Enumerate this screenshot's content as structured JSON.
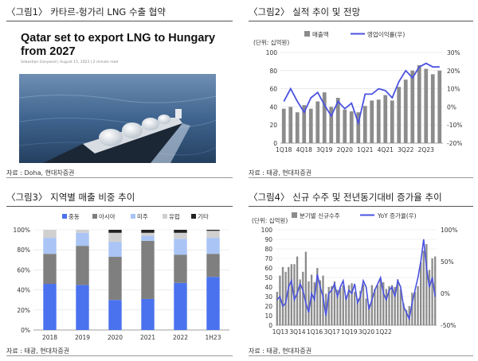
{
  "panels": {
    "p1": {
      "title": "〈그림1〉 카타르-헝가리 LNG 수출 협약",
      "source": "자료 : Doha, 현대차증권"
    },
    "p2": {
      "title": "〈그림2〉 실적 추이 및 전망",
      "source": "자료 : 태광, 현대차증권"
    },
    "p3": {
      "title": "〈그림3〉 지역별 매출 비중 추이",
      "source": "자료 : 태광, 현대차증권"
    },
    "p4": {
      "title": "〈그림4〉 신규 수주 및 전년동기대비 증가율 추이",
      "source": "자료 : 태광, 현대차증권"
    }
  },
  "news": {
    "headline": "Qatar set to export LNG to Hungary from 2027",
    "byline": "Sebastian Ganywod  |  August 15, 2023  |  2 minute read"
  },
  "colors": {
    "bar_gray": "#8c8c8c",
    "line_blue": "#4a52e0",
    "region": [
      "#4a72ee",
      "#7f7f7f",
      "#a9c4f5",
      "#d0d0d0",
      "#222222"
    ]
  },
  "chart_data": [
    {
      "id": "chart2",
      "type": "bar",
      "unit_label": "(단위: 십억원)",
      "ylim": [
        0,
        100
      ],
      "yticks": [
        0,
        20,
        40,
        60,
        80,
        100
      ],
      "y2lim": [
        -20,
        30
      ],
      "y2ticks": [
        "-20%",
        "-10%",
        "0%",
        "10%",
        "20%",
        "30%"
      ],
      "xticks": [
        "1Q18",
        "4Q18",
        "3Q19",
        "2Q20",
        "1Q21",
        "4Q21",
        "3Q22",
        "2Q23"
      ],
      "legend": [
        {
          "name": "매출액",
          "kind": "bar"
        },
        {
          "name": "영업이익률(우)",
          "kind": "line"
        }
      ],
      "series": [
        {
          "name": "매출액",
          "kind": "bar",
          "axis": "left",
          "values": [
            38,
            40,
            34,
            42,
            38,
            46,
            56,
            40,
            50,
            37,
            35,
            34,
            41,
            47,
            48,
            53,
            47,
            62,
            70,
            80,
            86,
            82,
            76,
            80
          ]
        },
        {
          "name": "영업이익률(우)",
          "kind": "line",
          "axis": "right",
          "values": [
            3,
            10,
            3,
            -3,
            5,
            8,
            1,
            -5,
            3,
            -1,
            2,
            -9,
            7,
            7,
            10,
            9,
            5,
            14,
            20,
            16,
            22,
            24,
            22,
            22
          ]
        }
      ]
    },
    {
      "id": "chart3",
      "type": "bar",
      "stacked": true,
      "ylim": [
        0,
        100
      ],
      "yticks": [
        "0%",
        "20%",
        "40%",
        "60%",
        "80%",
        "100%"
      ],
      "categories": [
        "2018",
        "2019",
        "2020",
        "2021",
        "2022",
        "1H23"
      ],
      "series": [
        {
          "name": "중동",
          "values": [
            46,
            45,
            30,
            31,
            47,
            53
          ]
        },
        {
          "name": "아시아",
          "values": [
            30,
            39,
            43,
            58,
            28,
            23
          ]
        },
        {
          "name": "미주",
          "values": [
            16,
            13,
            15,
            5,
            16,
            16
          ]
        },
        {
          "name": "유럽",
          "values": [
            8,
            3,
            9,
            3,
            6,
            7
          ]
        },
        {
          "name": "기타",
          "values": [
            0,
            0,
            3,
            3,
            3,
            1
          ]
        }
      ]
    },
    {
      "id": "chart4",
      "type": "bar",
      "unit_label": "(단위: 십억원)",
      "ylim": [
        0,
        100
      ],
      "yticks": [
        0,
        10,
        20,
        30,
        40,
        50,
        60,
        70,
        80,
        90,
        100
      ],
      "y2lim": [
        -50,
        100
      ],
      "y2ticks": [
        "-50%",
        "0%",
        "50%",
        "100%"
      ],
      "xticks": [
        "1Q13",
        "3Q14",
        "1Q16",
        "3Q17",
        "1Q19",
        "3Q20",
        "1Q22"
      ],
      "legend": [
        {
          "name": "분기별 신규수주",
          "kind": "bar"
        },
        {
          "name": "YoY 증가율(우)",
          "kind": "line"
        }
      ],
      "series": [
        {
          "name": "분기별 신규수주",
          "kind": "bar",
          "axis": "left",
          "values": [
            35,
            52,
            61,
            56,
            61,
            64,
            64,
            72,
            48,
            56,
            77,
            46,
            53,
            45,
            60,
            47,
            52,
            33,
            40,
            41,
            46,
            37,
            39,
            42,
            30,
            42,
            44,
            35,
            28,
            36,
            43,
            28,
            22,
            42,
            38,
            42,
            48,
            45,
            38,
            41,
            42,
            40,
            48,
            38,
            23,
            16,
            20,
            34,
            35,
            41,
            66,
            78,
            85,
            58,
            70,
            72
          ]
        },
        {
          "name": "YoY 증가율(우)",
          "kind": "line",
          "axis": "right",
          "values": [
            -10,
            -5,
            -20,
            -15,
            10,
            20,
            -10,
            0,
            15,
            5,
            -15,
            -30,
            0,
            -10,
            30,
            10,
            -5,
            -35,
            0,
            5,
            15,
            -5,
            10,
            20,
            -10,
            5,
            0,
            15,
            -15,
            -5,
            20,
            10,
            -25,
            -10,
            5,
            15,
            25,
            0,
            -10,
            5,
            10,
            -5,
            20,
            10,
            -20,
            -30,
            -40,
            -15,
            5,
            25,
            50,
            85,
            40,
            10,
            25,
            -5
          ]
        }
      ]
    }
  ]
}
